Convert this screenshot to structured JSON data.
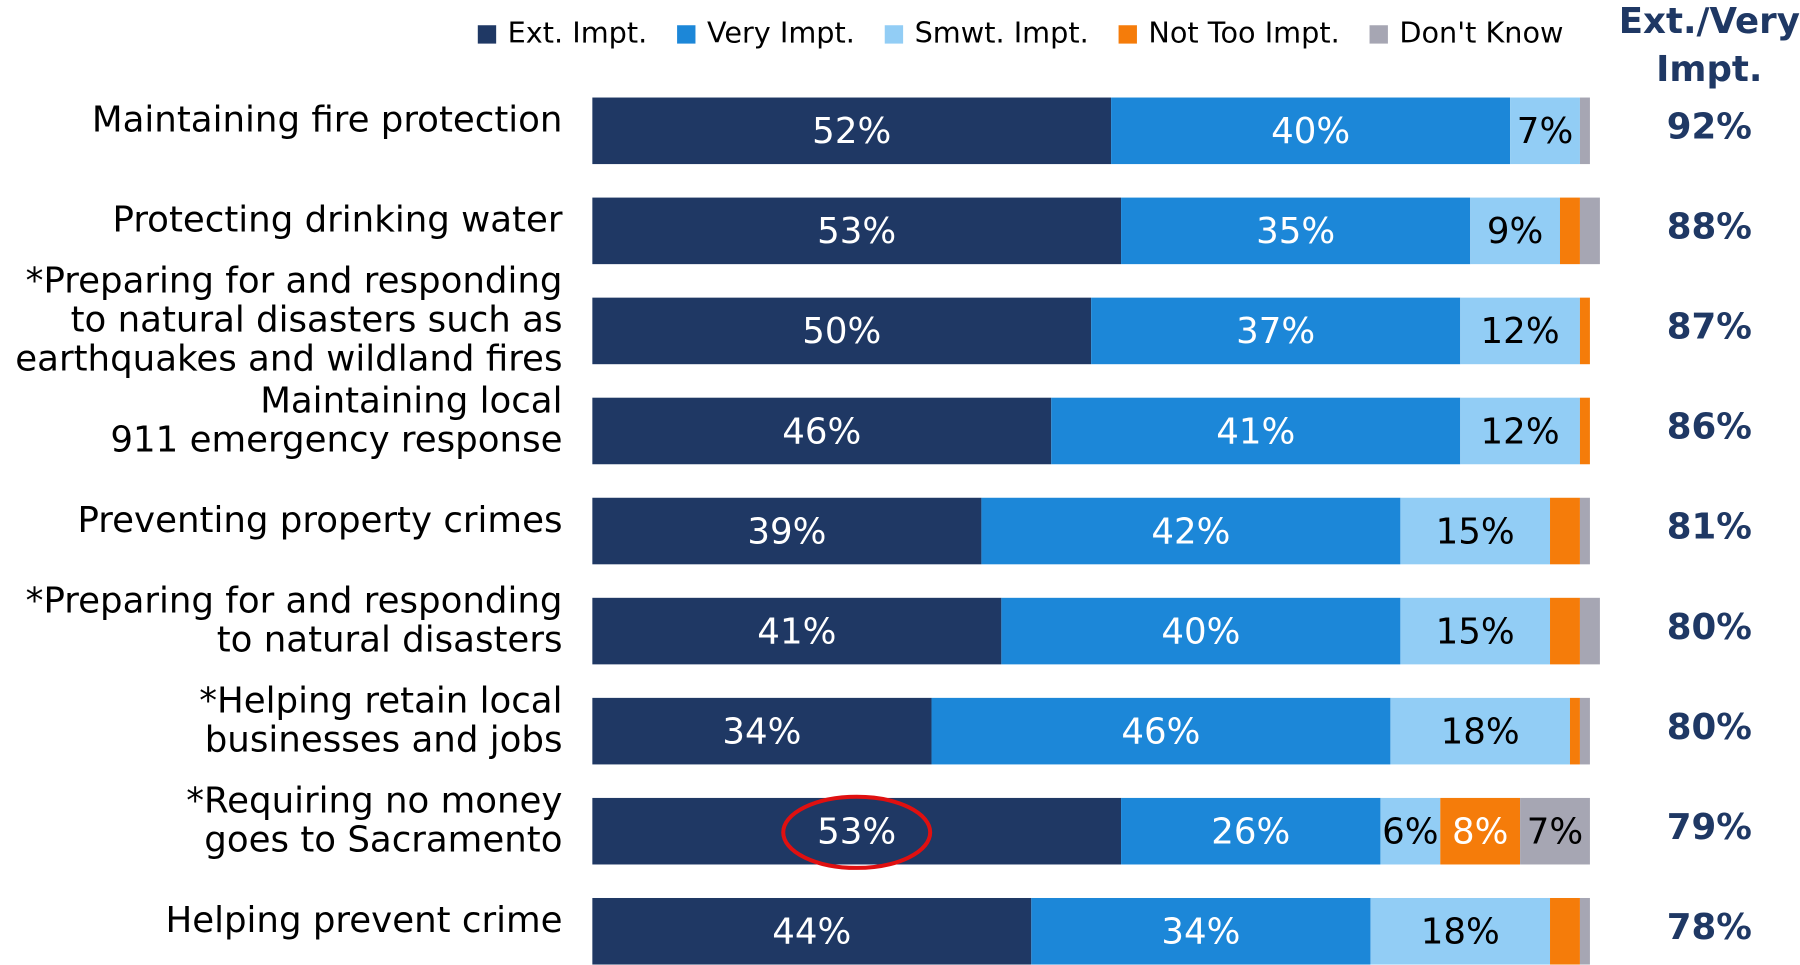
{
  "chart_data": {
    "type": "stacked_barh",
    "categories": [
      [
        "Maintaining fire protection"
      ],
      [
        "Protecting drinking water"
      ],
      [
        "*Preparing for and responding",
        "to natural disasters such as",
        "earthquakes and wildland fires"
      ],
      [
        "Maintaining local",
        "911 emergency response"
      ],
      [
        "Preventing property crimes"
      ],
      [
        "*Preparing for and responding",
        "to natural disasters"
      ],
      [
        "*Helping retain local",
        "businesses and jobs"
      ],
      [
        "*Requiring no money",
        "goes to Sacramento"
      ],
      [
        "Helping prevent crime"
      ]
    ],
    "series": [
      {
        "name": "Ext. Impt.",
        "color": "#1f3864",
        "label_color": "#ffffff",
        "values": [
          52,
          53,
          50,
          46,
          39,
          41,
          34,
          53,
          44
        ],
        "value_labels": [
          "52%",
          "53%",
          "50%",
          "46%",
          "39%",
          "41%",
          "34%",
          "53%",
          "44%"
        ]
      },
      {
        "name": "Very Impt.",
        "color": "#1c87d8",
        "label_color": "#ffffff",
        "values": [
          40,
          35,
          37,
          41,
          42,
          40,
          46,
          26,
          34
        ],
        "value_labels": [
          "40%",
          "35%",
          "37%",
          "41%",
          "42%",
          "40%",
          "46%",
          "26%",
          "34%"
        ]
      },
      {
        "name": "Smwt. Impt.",
        "color": "#92cdf5",
        "label_color": "#000000",
        "values": [
          7,
          9,
          12,
          12,
          15,
          15,
          18,
          6,
          18
        ],
        "value_labels": [
          "7%",
          "9%",
          "12%",
          "12%",
          "15%",
          "15%",
          "18%",
          "6%",
          "18%"
        ]
      },
      {
        "name": "Not Too Impt.",
        "color": "#f57c0a",
        "label_color": "#ffffff",
        "values": [
          0,
          2,
          1,
          1,
          3,
          3,
          1,
          8,
          3
        ],
        "value_labels": [
          null,
          null,
          null,
          null,
          null,
          null,
          null,
          "8%",
          null
        ]
      },
      {
        "name": "Don't Know",
        "color": "#a6a6b3",
        "label_color": "#000000",
        "values": [
          1,
          2,
          0,
          0,
          1,
          2,
          1,
          7,
          1
        ],
        "value_labels": [
          null,
          null,
          null,
          null,
          null,
          null,
          null,
          "7%",
          null
        ]
      }
    ],
    "totals": {
      "title": [
        "Ext./Very",
        "Impt."
      ],
      "values": [
        92,
        88,
        87,
        86,
        81,
        80,
        80,
        79,
        78
      ],
      "value_labels": [
        "92%",
        "88%",
        "87%",
        "86%",
        "81%",
        "80%",
        "80%",
        "79%",
        "78%"
      ]
    }
  }
}
